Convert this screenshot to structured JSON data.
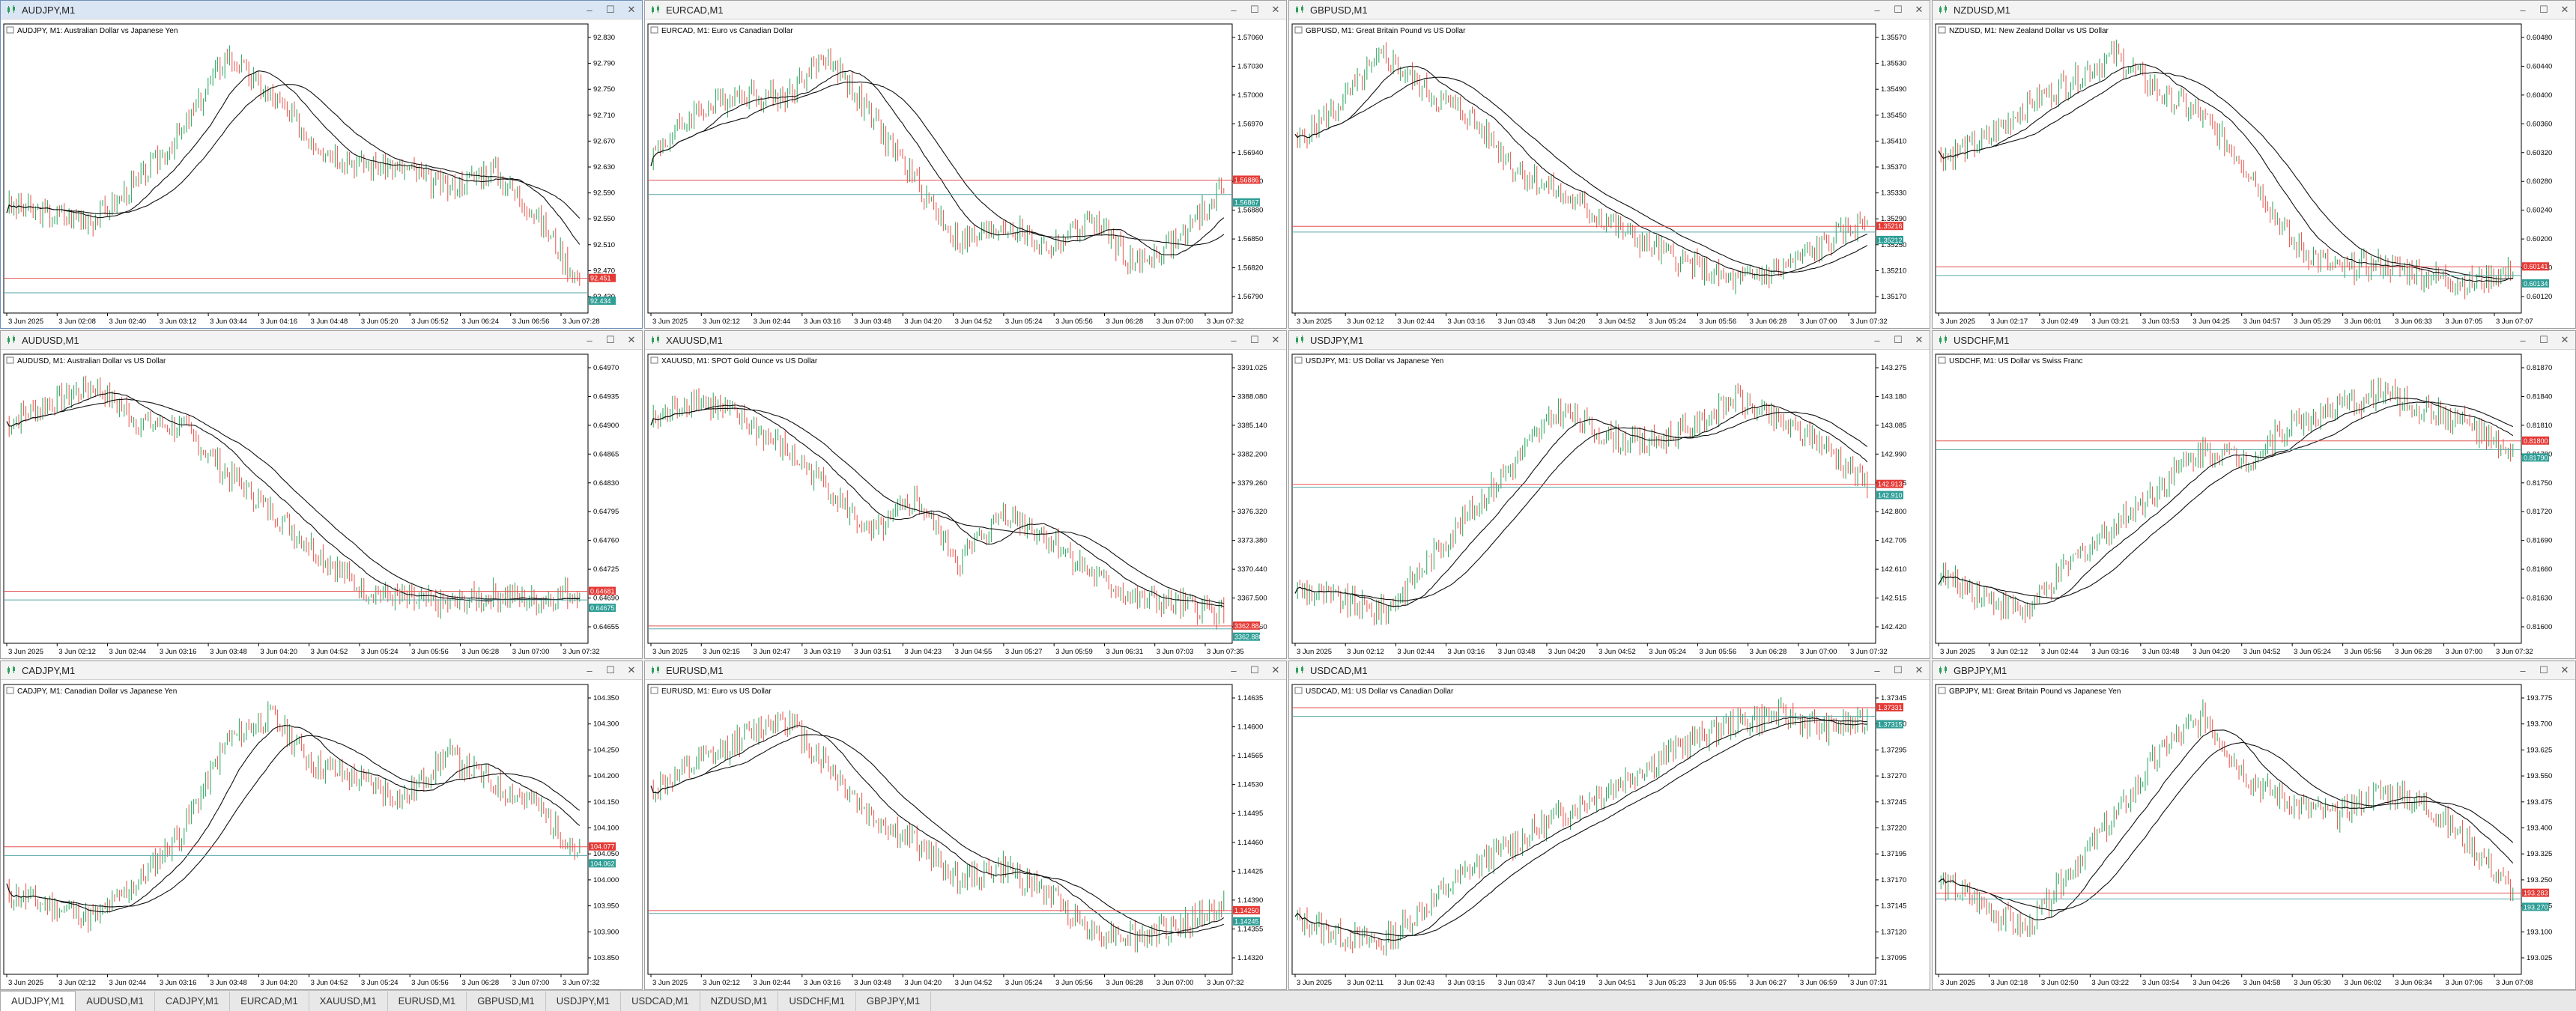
{
  "colors": {
    "bull": "#26a65b",
    "bear": "#e8534a",
    "ma": "#111111",
    "bid_line": "#e35050",
    "ask_line": "#5aa7a7",
    "bid_label": "#e53935",
    "ask_label": "#2e9e96"
  },
  "windows": [
    {
      "title": "AUDJPY,M1",
      "header": "AUDJPY, M1:  Australian Dollar vs Japanese Yen",
      "active": true,
      "price_labels": [
        "92.830",
        "92.790",
        "92.750",
        "92.710",
        "92.670",
        "92.630",
        "92.590",
        "92.550",
        "92.510",
        "92.470",
        "92.430"
      ],
      "time_labels": [
        "3 Jun 2025",
        "3 Jun 02:08",
        "3 Jun 02:40",
        "3 Jun 03:12",
        "3 Jun 03:44",
        "3 Jun 04:16",
        "3 Jun 04:48",
        "3 Jun 05:20",
        "3 Jun 05:52",
        "3 Jun 06:24",
        "3 Jun 06:56",
        "3 Jun 07:28"
      ],
      "bid": "92.451",
      "ask": "92.434",
      "trend": [
        0.35,
        0.32,
        0.3,
        0.45,
        0.65,
        0.95,
        0.78,
        0.6,
        0.52,
        0.5,
        0.42,
        0.5,
        0.32,
        0.05
      ],
      "bid_level": 0.12,
      "ask_level": 0.07
    },
    {
      "title": "EURCAD,M1",
      "header": "EURCAD, M1:  Euro vs Canadian Dollar",
      "active": false,
      "price_labels": [
        "1.57060",
        "1.57030",
        "1.57000",
        "1.56970",
        "1.56940",
        "1.56910",
        "1.56880",
        "1.56850",
        "1.56820",
        "1.56790"
      ],
      "time_labels": [
        "3 Jun 2025",
        "3 Jun 02:12",
        "3 Jun 02:44",
        "3 Jun 03:16",
        "3 Jun 03:48",
        "3 Jun 04:20",
        "3 Jun 04:52",
        "3 Jun 05:24",
        "3 Jun 05:56",
        "3 Jun 06:28",
        "3 Jun 07:00",
        "3 Jun 07:32"
      ],
      "bid": "1.56886",
      "ask": "1.56867",
      "trend": [
        0.55,
        0.72,
        0.8,
        0.78,
        0.95,
        0.7,
        0.45,
        0.2,
        0.28,
        0.18,
        0.3,
        0.12,
        0.22,
        0.42
      ],
      "bid_level": 0.46,
      "ask_level": 0.41
    },
    {
      "title": "GBPUSD,M1",
      "header": "GBPUSD, M1:  Great Britain Pound vs US Dollar",
      "active": false,
      "price_labels": [
        "1.35570",
        "1.35530",
        "1.35490",
        "1.35450",
        "1.35410",
        "1.35370",
        "1.35330",
        "1.35290",
        "1.35250",
        "1.35210",
        "1.35170"
      ],
      "time_labels": [
        "3 Jun 2025",
        "3 Jun 02:12",
        "3 Jun 02:44",
        "3 Jun 03:16",
        "3 Jun 03:48",
        "3 Jun 04:20",
        "3 Jun 04:52",
        "3 Jun 05:24",
        "3 Jun 05:56",
        "3 Jun 06:28",
        "3 Jun 07:00",
        "3 Jun 07:32"
      ],
      "bid": "1.35216",
      "ask": "1.35212",
      "trend": [
        0.6,
        0.75,
        0.95,
        0.8,
        0.7,
        0.5,
        0.4,
        0.3,
        0.2,
        0.12,
        0.05,
        0.1,
        0.2,
        0.3
      ],
      "bid_level": 0.3,
      "ask_level": 0.28
    },
    {
      "title": "NZDUSD,M1",
      "header": "NZDUSD, M1:  New Zealand Dollar vs US Dollar",
      "active": false,
      "price_labels": [
        "0.60480",
        "0.60440",
        "0.60400",
        "0.60360",
        "0.60320",
        "0.60280",
        "0.60240",
        "0.60200",
        "0.60160",
        "0.60120"
      ],
      "time_labels": [
        "3 Jun 2025",
        "3 Jun 02:17",
        "3 Jun 02:49",
        "3 Jun 03:21",
        "3 Jun 03:53",
        "3 Jun 04:25",
        "3 Jun 04:57",
        "3 Jun 05:29",
        "3 Jun 06:01",
        "3 Jun 06:33",
        "3 Jun 07:05",
        "3 Jun 07:07"
      ],
      "bid": "0.60141",
      "ask": "0.60134",
      "trend": [
        0.55,
        0.6,
        0.75,
        0.85,
        0.95,
        0.8,
        0.7,
        0.5,
        0.2,
        0.1,
        0.12,
        0.08,
        0.05,
        0.1
      ],
      "bid_level": 0.16,
      "ask_level": 0.13
    },
    {
      "title": "AUDUSD,M1",
      "header": "AUDUSD, M1:  Australian Dollar vs US Dollar",
      "active": false,
      "price_labels": [
        "0.64970",
        "0.64935",
        "0.64900",
        "0.64865",
        "0.64830",
        "0.64795",
        "0.64760",
        "0.64725",
        "0.64690",
        "0.64655"
      ],
      "time_labels": [
        "3 Jun 2025",
        "3 Jun 02:12",
        "3 Jun 02:44",
        "3 Jun 03:16",
        "3 Jun 03:48",
        "3 Jun 04:20",
        "3 Jun 04:52",
        "3 Jun 05:24",
        "3 Jun 05:56",
        "3 Jun 06:28",
        "3 Jun 07:00",
        "3 Jun 07:32"
      ],
      "bid": "0.64681",
      "ask": "0.64675",
      "trend": [
        0.8,
        0.88,
        0.95,
        0.8,
        0.78,
        0.6,
        0.45,
        0.3,
        0.15,
        0.1,
        0.08,
        0.12,
        0.1,
        0.14
      ],
      "bid_level": 0.18,
      "ask_level": 0.15
    },
    {
      "title": "XAUUSD,M1",
      "header": "XAUUSD, M1:  SPOT Gold Ounce vs US Dollar",
      "active": false,
      "price_labels": [
        "3391.025",
        "3388.080",
        "3385.140",
        "3382.200",
        "3379.260",
        "3376.320",
        "3373.380",
        "3370.440",
        "3367.500",
        "3364.560"
      ],
      "time_labels": [
        "3 Jun 2025",
        "3 Jun 02:15",
        "3 Jun 02:47",
        "3 Jun 03:19",
        "3 Jun 03:51",
        "3 Jun 04:23",
        "3 Jun 04:55",
        "3 Jun 05:27",
        "3 Jun 05:59",
        "3 Jun 06:31",
        "3 Jun 07:03",
        "3 Jun 07:35"
      ],
      "bid": "3362.884",
      "ask": "3362.880",
      "trend": [
        0.8,
        0.9,
        0.82,
        0.7,
        0.55,
        0.35,
        0.5,
        0.25,
        0.45,
        0.35,
        0.2,
        0.1,
        0.08,
        0.05
      ],
      "bid_level": 0.06,
      "ask_level": 0.05
    },
    {
      "title": "USDJPY,M1",
      "header": "USDJPY, M1:  US Dollar vs Japanese Yen",
      "active": false,
      "price_labels": [
        "143.275",
        "143.180",
        "143.085",
        "142.990",
        "142.895",
        "142.800",
        "142.705",
        "142.610",
        "142.515",
        "142.420"
      ],
      "time_labels": [
        "3 Jun 2025",
        "3 Jun 02:12",
        "3 Jun 02:44",
        "3 Jun 03:16",
        "3 Jun 03:48",
        "3 Jun 04:20",
        "3 Jun 04:52",
        "3 Jun 05:24",
        "3 Jun 05:56",
        "3 Jun 06:28",
        "3 Jun 07:00",
        "3 Jun 07:32"
      ],
      "bid": "142.913",
      "ask": "142.910",
      "trend": [
        0.15,
        0.1,
        0.05,
        0.25,
        0.45,
        0.65,
        0.85,
        0.75,
        0.72,
        0.78,
        0.9,
        0.8,
        0.72,
        0.55
      ],
      "bid_level": 0.55,
      "ask_level": 0.54
    },
    {
      "title": "USDCHF,M1",
      "header": "USDCHF, M1:  US Dollar vs Swiss Franc",
      "active": false,
      "price_labels": [
        "0.81870",
        "0.81840",
        "0.81810",
        "0.81780",
        "0.81750",
        "0.81720",
        "0.81690",
        "0.81660",
        "0.81630",
        "0.81600"
      ],
      "time_labels": [
        "3 Jun 2025",
        "3 Jun 02:12",
        "3 Jun 02:44",
        "3 Jun 03:16",
        "3 Jun 03:48",
        "3 Jun 04:20",
        "3 Jun 04:52",
        "3 Jun 05:24",
        "3 Jun 05:56",
        "3 Jun 06:28",
        "3 Jun 07:00",
        "3 Jun 07:32"
      ],
      "bid": "0.81800",
      "ask": "0.81790",
      "trend": [
        0.2,
        0.12,
        0.05,
        0.25,
        0.4,
        0.55,
        0.7,
        0.65,
        0.8,
        0.85,
        0.92,
        0.85,
        0.8,
        0.65
      ],
      "bid_level": 0.7,
      "ask_level": 0.67
    },
    {
      "title": "CADJPY,M1",
      "header": "CADJPY, M1:  Canadian Dollar vs Japanese Yen",
      "active": false,
      "price_labels": [
        "104.350",
        "104.300",
        "104.250",
        "104.200",
        "104.150",
        "104.100",
        "104.050",
        "104.000",
        "103.950",
        "103.900",
        "103.850"
      ],
      "time_labels": [
        "3 Jun 2025",
        "3 Jun 02:12",
        "3 Jun 02:44",
        "3 Jun 03:16",
        "3 Jun 03:48",
        "3 Jun 04:20",
        "3 Jun 04:52",
        "3 Jun 05:24",
        "3 Jun 05:56",
        "3 Jun 06:28",
        "3 Jun 07:00",
        "3 Jun 07:32"
      ],
      "bid": "104.077",
      "ask": "104.062",
      "trend": [
        0.25,
        0.2,
        0.15,
        0.3,
        0.5,
        0.85,
        0.95,
        0.75,
        0.7,
        0.62,
        0.8,
        0.68,
        0.6,
        0.4
      ],
      "bid_level": 0.44,
      "ask_level": 0.41
    },
    {
      "title": "EURUSD,M1",
      "header": "EURUSD, M1:  Euro vs US Dollar",
      "active": false,
      "price_labels": [
        "1.14635",
        "1.14600",
        "1.14565",
        "1.14530",
        "1.14495",
        "1.14460",
        "1.14425",
        "1.14390",
        "1.14355",
        "1.14320"
      ],
      "time_labels": [
        "3 Jun 2025",
        "3 Jun 02:12",
        "3 Jun 02:44",
        "3 Jun 03:16",
        "3 Jun 03:48",
        "3 Jun 04:20",
        "3 Jun 04:52",
        "3 Jun 05:24",
        "3 Jun 05:56",
        "3 Jun 06:28",
        "3 Jun 07:00",
        "3 Jun 07:32"
      ],
      "bid": "1.14250",
      "ask": "1.14245",
      "trend": [
        0.65,
        0.75,
        0.85,
        0.95,
        0.75,
        0.55,
        0.45,
        0.3,
        0.35,
        0.25,
        0.1,
        0.08,
        0.12,
        0.2
      ],
      "bid_level": 0.22,
      "ask_level": 0.21
    },
    {
      "title": "USDCAD,M1",
      "header": "USDCAD, M1:  US Dollar vs Canadian Dollar",
      "active": false,
      "price_labels": [
        "1.37345",
        "1.37320",
        "1.37295",
        "1.37270",
        "1.37245",
        "1.37220",
        "1.37195",
        "1.37170",
        "1.37145",
        "1.37120",
        "1.37095"
      ],
      "time_labels": [
        "3 Jun 2025",
        "3 Jun 02:11",
        "3 Jun 02:43",
        "3 Jun 03:15",
        "3 Jun 03:47",
        "3 Jun 04:19",
        "3 Jun 04:51",
        "3 Jun 05:23",
        "3 Jun 05:55",
        "3 Jun 06:27",
        "3 Jun 06:59",
        "3 Jun 07:31"
      ],
      "bid": "1.37331",
      "ask": "1.37315",
      "trend": [
        0.15,
        0.08,
        0.05,
        0.2,
        0.35,
        0.45,
        0.55,
        0.65,
        0.75,
        0.85,
        0.92,
        0.95,
        0.9,
        0.92
      ],
      "bid_level": 0.92,
      "ask_level": 0.89
    },
    {
      "title": "GBPJPY,M1",
      "header": "GBPJPY, M1:  Great Britain Pound vs Japanese Yen",
      "active": false,
      "price_labels": [
        "193.775",
        "193.700",
        "193.625",
        "193.550",
        "193.475",
        "193.400",
        "193.325",
        "193.250",
        "193.175",
        "193.100",
        "193.025"
      ],
      "time_labels": [
        "3 Jun 2025",
        "3 Jun 02:18",
        "3 Jun 02:50",
        "3 Jun 03:22",
        "3 Jun 03:54",
        "3 Jun 04:26",
        "3 Jun 04:58",
        "3 Jun 05:30",
        "3 Jun 06:02",
        "3 Jun 06:34",
        "3 Jun 07:06",
        "3 Jun 07:08"
      ],
      "bid": "193.283",
      "ask": "193.270",
      "trend": [
        0.3,
        0.2,
        0.1,
        0.35,
        0.55,
        0.8,
        0.95,
        0.7,
        0.6,
        0.55,
        0.65,
        0.6,
        0.45,
        0.25
      ],
      "bid_level": 0.28,
      "ask_level": 0.26
    }
  ],
  "tabs": [
    "AUDJPY,M1",
    "AUDUSD,M1",
    "CADJPY,M1",
    "EURCAD,M1",
    "XAUUSD,M1",
    "EURUSD,M1",
    "GBPUSD,M1",
    "USDJPY,M1",
    "USDCAD,M1",
    "NZDUSD,M1",
    "USDCHF,M1",
    "GBPJPY,M1"
  ],
  "active_tab": 0,
  "window_buttons": {
    "minimize": "–",
    "maximize": "☐",
    "close": "✕"
  }
}
